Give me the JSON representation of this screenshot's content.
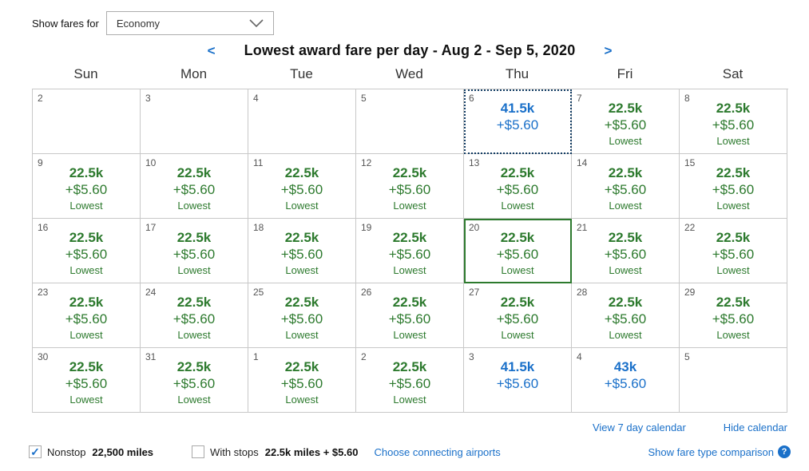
{
  "fare_filter": {
    "label": "Show fares for",
    "selected_option": "Economy"
  },
  "header": {
    "title": "Lowest award fare per day - Aug 2 - Sep 5, 2020",
    "prev_label": "<",
    "next_label": ">"
  },
  "day_headers": [
    "Sun",
    "Mon",
    "Tue",
    "Wed",
    "Thu",
    "Fri",
    "Sat"
  ],
  "weeks": [
    [
      {
        "day": "2",
        "miles": "",
        "fees": "",
        "note": "",
        "color": "",
        "border": ""
      },
      {
        "day": "3",
        "miles": "",
        "fees": "",
        "note": "",
        "color": "",
        "border": ""
      },
      {
        "day": "4",
        "miles": "",
        "fees": "",
        "note": "",
        "color": "",
        "border": ""
      },
      {
        "day": "5",
        "miles": "",
        "fees": "",
        "note": "",
        "color": "",
        "border": ""
      },
      {
        "day": "6",
        "miles": "41.5k",
        "fees": "+$5.60",
        "note": "",
        "color": "blue",
        "border": "focus-dotted"
      },
      {
        "day": "7",
        "miles": "22.5k",
        "fees": "+$5.60",
        "note": "Lowest",
        "color": "green",
        "border": ""
      },
      {
        "day": "8",
        "miles": "22.5k",
        "fees": "+$5.60",
        "note": "Lowest",
        "color": "green",
        "border": ""
      }
    ],
    [
      {
        "day": "9",
        "miles": "22.5k",
        "fees": "+$5.60",
        "note": "Lowest",
        "color": "green",
        "border": ""
      },
      {
        "day": "10",
        "miles": "22.5k",
        "fees": "+$5.60",
        "note": "Lowest",
        "color": "green",
        "border": ""
      },
      {
        "day": "11",
        "miles": "22.5k",
        "fees": "+$5.60",
        "note": "Lowest",
        "color": "green",
        "border": ""
      },
      {
        "day": "12",
        "miles": "22.5k",
        "fees": "+$5.60",
        "note": "Lowest",
        "color": "green",
        "border": ""
      },
      {
        "day": "13",
        "miles": "22.5k",
        "fees": "+$5.60",
        "note": "Lowest",
        "color": "green",
        "border": ""
      },
      {
        "day": "14",
        "miles": "22.5k",
        "fees": "+$5.60",
        "note": "Lowest",
        "color": "green",
        "border": ""
      },
      {
        "day": "15",
        "miles": "22.5k",
        "fees": "+$5.60",
        "note": "Lowest",
        "color": "green",
        "border": ""
      }
    ],
    [
      {
        "day": "16",
        "miles": "22.5k",
        "fees": "+$5.60",
        "note": "Lowest",
        "color": "green",
        "border": ""
      },
      {
        "day": "17",
        "miles": "22.5k",
        "fees": "+$5.60",
        "note": "Lowest",
        "color": "green",
        "border": ""
      },
      {
        "day": "18",
        "miles": "22.5k",
        "fees": "+$5.60",
        "note": "Lowest",
        "color": "green",
        "border": ""
      },
      {
        "day": "19",
        "miles": "22.5k",
        "fees": "+$5.60",
        "note": "Lowest",
        "color": "green",
        "border": ""
      },
      {
        "day": "20",
        "miles": "22.5k",
        "fees": "+$5.60",
        "note": "Lowest",
        "color": "green",
        "border": "selected"
      },
      {
        "day": "21",
        "miles": "22.5k",
        "fees": "+$5.60",
        "note": "Lowest",
        "color": "green",
        "border": ""
      },
      {
        "day": "22",
        "miles": "22.5k",
        "fees": "+$5.60",
        "note": "Lowest",
        "color": "green",
        "border": ""
      }
    ],
    [
      {
        "day": "23",
        "miles": "22.5k",
        "fees": "+$5.60",
        "note": "Lowest",
        "color": "green",
        "border": ""
      },
      {
        "day": "24",
        "miles": "22.5k",
        "fees": "+$5.60",
        "note": "Lowest",
        "color": "green",
        "border": ""
      },
      {
        "day": "25",
        "miles": "22.5k",
        "fees": "+$5.60",
        "note": "Lowest",
        "color": "green",
        "border": ""
      },
      {
        "day": "26",
        "miles": "22.5k",
        "fees": "+$5.60",
        "note": "Lowest",
        "color": "green",
        "border": ""
      },
      {
        "day": "27",
        "miles": "22.5k",
        "fees": "+$5.60",
        "note": "Lowest",
        "color": "green",
        "border": ""
      },
      {
        "day": "28",
        "miles": "22.5k",
        "fees": "+$5.60",
        "note": "Lowest",
        "color": "green",
        "border": ""
      },
      {
        "day": "29",
        "miles": "22.5k",
        "fees": "+$5.60",
        "note": "Lowest",
        "color": "green",
        "border": ""
      }
    ],
    [
      {
        "day": "30",
        "miles": "22.5k",
        "fees": "+$5.60",
        "note": "Lowest",
        "color": "green",
        "border": ""
      },
      {
        "day": "31",
        "miles": "22.5k",
        "fees": "+$5.60",
        "note": "Lowest",
        "color": "green",
        "border": ""
      },
      {
        "day": "1",
        "miles": "22.5k",
        "fees": "+$5.60",
        "note": "Lowest",
        "color": "green",
        "border": ""
      },
      {
        "day": "2",
        "miles": "22.5k",
        "fees": "+$5.60",
        "note": "Lowest",
        "color": "green",
        "border": ""
      },
      {
        "day": "3",
        "miles": "41.5k",
        "fees": "+$5.60",
        "note": "",
        "color": "blue",
        "border": ""
      },
      {
        "day": "4",
        "miles": "43k",
        "fees": "+$5.60",
        "note": "",
        "color": "blue",
        "border": ""
      },
      {
        "day": "5",
        "miles": "",
        "fees": "",
        "note": "",
        "color": "",
        "border": ""
      }
    ]
  ],
  "links": {
    "view_7_day": "View 7 day calendar",
    "hide_calendar": "Hide calendar",
    "choose_connecting": "Choose connecting airports",
    "fare_type_comparison": "Show fare type comparison",
    "help_icon": "?"
  },
  "filters": {
    "nonstop": {
      "label": "Nonstop",
      "value": "22,500 miles",
      "checked": true,
      "check_glyph": "✓"
    },
    "with_stops": {
      "label": "With stops",
      "value": "22.5k miles + $5.60",
      "checked": false
    }
  },
  "colors": {
    "fare_green": "#2d7a2e",
    "fare_blue": "#1a70c9",
    "link_blue": "#1a70c9",
    "selected_border_green": "#2d7a2e",
    "focus_border_navy": "#123c63",
    "grid_border": "#c8c8c8"
  }
}
